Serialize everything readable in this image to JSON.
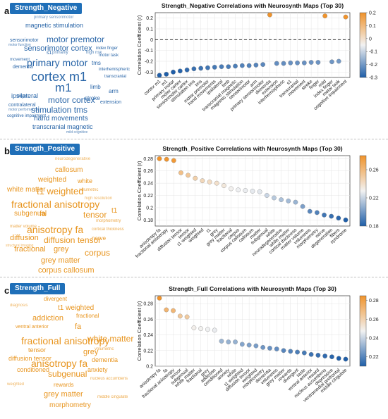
{
  "panels": [
    {
      "letter": "a",
      "cloud": {
        "title": "Strength_Negative",
        "color": "#2a66a8",
        "words": [
          "primary sensorimotor",
          "magnetic stimulation",
          "motor premotor",
          "sensorimotor cortex",
          "primary motor",
          "cortex m1",
          "m1",
          "motor cortex",
          "stimulation tms",
          "hand movements",
          "transcranial magnetic",
          "tms",
          "arm",
          "limb",
          "stroke",
          "ipsilateral",
          "sensorimotor",
          "motor function",
          "movement",
          "dementia",
          "contralateral",
          "finger",
          "cognitive impairment",
          "mild cognitive",
          "extension",
          "interhemispheric",
          "index finger",
          "motor task",
          "transcranial",
          "s1",
          "primarily",
          "high risk",
          "motor performance"
        ]
      },
      "chart_data": {
        "type": "scatter",
        "title": "Strength_Negative Correlations with Neurosynth Maps (Top 30)",
        "xlabel": "",
        "ylabel": "Correlation Coefficient (r)",
        "ylim": [
          -0.35,
          0.25
        ],
        "yticks": [
          -0.3,
          -0.2,
          -0.1,
          0,
          0.1,
          0.2
        ],
        "reference_line": 0,
        "grid": true,
        "categories": [
          "cortex m1",
          "m1",
          "primary motor",
          "motor cortex",
          "sensorimotor cortex",
          "stimulation tms",
          "tms",
          "motor premotor",
          "hand movements",
          "ipsilateral",
          "limb",
          "transcranial magnetic",
          "magnetic stimulation",
          "sensorimotor",
          "arm",
          "primary sensorimotor",
          "dementia",
          "extension",
          "interhemispheric",
          "s1",
          "transcranial",
          "movement",
          "stroke",
          "finger",
          "mild",
          "index finger",
          "motor task",
          "cognitive impairment"
        ],
        "values": [
          -0.33,
          -0.32,
          -0.3,
          -0.29,
          -0.28,
          -0.27,
          -0.265,
          -0.26,
          -0.255,
          -0.25,
          -0.25,
          -0.245,
          -0.24,
          -0.24,
          -0.235,
          -0.23,
          0.23,
          -0.22,
          -0.22,
          -0.215,
          -0.215,
          -0.215,
          -0.21,
          -0.21,
          0.22,
          -0.205,
          -0.2,
          0.21
        ],
        "colorbar": {
          "min": -0.3,
          "max": 0.2,
          "ticks": [
            0.2,
            0.1,
            0,
            -0.1,
            -0.2,
            -0.3
          ]
        }
      }
    },
    {
      "letter": "b",
      "cloud": {
        "title": "Strength_Positive",
        "color": "#e8951f",
        "words": [
          "neurodegenerative",
          "callosum",
          "weighted",
          "white",
          "white matter",
          "volumetric",
          "t1 weighted",
          "fractional anisotropy",
          "tensor",
          "subgenual",
          "t1",
          "anisotropy fa",
          "morphometry",
          "fa",
          "diffusion",
          "diffusion tensor",
          "nerve",
          "fractional",
          "grey",
          "corpus",
          "grey matter",
          "corpus callosum",
          "matter volume",
          "cortical thickness",
          "high resolution",
          "structural imaging"
        ]
      },
      "chart_data": {
        "type": "scatter",
        "title": "Strength_Positive Correlations with Neurosynth Maps (Top 30)",
        "xlabel": "",
        "ylabel": "Correlation Coefficient (r)",
        "ylim": [
          0.17,
          0.285
        ],
        "yticks": [
          0.18,
          0.2,
          0.22,
          0.24,
          0.26,
          0.28
        ],
        "grid": true,
        "categories": [
          "anisotropy fa",
          "fractional anisotropy",
          "fa",
          "diffusion tensor",
          "tensor",
          "t1 weighted",
          "weighted",
          "t1",
          "grey",
          "grey matter",
          "fractional",
          "corpus",
          "corpus callosum",
          "callosum",
          "matter",
          "subgenual",
          "white",
          "neurodegenerative",
          "white matter",
          "cortical thickness",
          "matter volume",
          "volumetric",
          "morphometry",
          "nerve",
          "degeneration",
          "fibers",
          "syndrome"
        ],
        "values": [
          0.28,
          0.279,
          0.277,
          0.257,
          0.253,
          0.248,
          0.244,
          0.242,
          0.24,
          0.236,
          0.231,
          0.229,
          0.228,
          0.227,
          0.226,
          0.22,
          0.216,
          0.213,
          0.211,
          0.209,
          0.202,
          0.194,
          0.192,
          0.188,
          0.186,
          0.183,
          0.18
        ],
        "colorbar": {
          "min": 0.18,
          "max": 0.28,
          "ticks": [
            0.26,
            0.22,
            0.18
          ]
        }
      }
    },
    {
      "letter": "c",
      "cloud": {
        "title": "Strength_Full",
        "color": "#e8951f",
        "words": [
          "divergent",
          "t1 weighted",
          "fractional",
          "addiction",
          "fa",
          "white matter",
          "ventral anterior",
          "fractional anisotropy",
          "grey",
          "tensor",
          "dementia",
          "anisotropy fa",
          "diffusion tensor",
          "anxiety",
          "subgenual",
          "volumetric",
          "conditioned",
          "rewards",
          "grey matter",
          "morphometry",
          "nucleus accumbens",
          "middle cingulate",
          "diagnosis",
          "weighted"
        ]
      },
      "chart_data": {
        "type": "scatter",
        "title": "Strength_Full Correlations with Neurosynth Maps (Top 30)",
        "xlabel": "",
        "ylabel": "Correlation Coefficient (r)",
        "ylim": [
          0.2,
          0.29
        ],
        "yticks": [
          0.2,
          0.22,
          0.24,
          0.26,
          0.28
        ],
        "grid": true,
        "categories": [
          "anisotropy fa",
          "fa",
          "fractional anisotropy",
          "tensor",
          "subgenual",
          "white matter",
          "fractional",
          "grey",
          "addiction",
          "conditioned",
          "anxiety",
          "white",
          "t1 weighted",
          "diffusion tensor",
          "weighted",
          "morphometry",
          "dementia",
          "volumetric",
          "grey matter",
          "rewards",
          "divergent",
          "taste",
          "ventral anterior",
          "reward",
          "nucleus accumbens",
          "depressive",
          "ventromedial prefrontal",
          "middle cingulate"
        ],
        "values": [
          0.287,
          0.272,
          0.271,
          0.264,
          0.263,
          0.249,
          0.248,
          0.247,
          0.246,
          0.232,
          0.231,
          0.231,
          0.228,
          0.227,
          0.226,
          0.224,
          0.223,
          0.222,
          0.22,
          0.219,
          0.218,
          0.217,
          0.215,
          0.214,
          0.213,
          0.212,
          0.21,
          0.209
        ],
        "colorbar": {
          "min": 0.21,
          "max": 0.285,
          "ticks": [
            0.28,
            0.26,
            0.24,
            0.22
          ]
        }
      }
    }
  ]
}
